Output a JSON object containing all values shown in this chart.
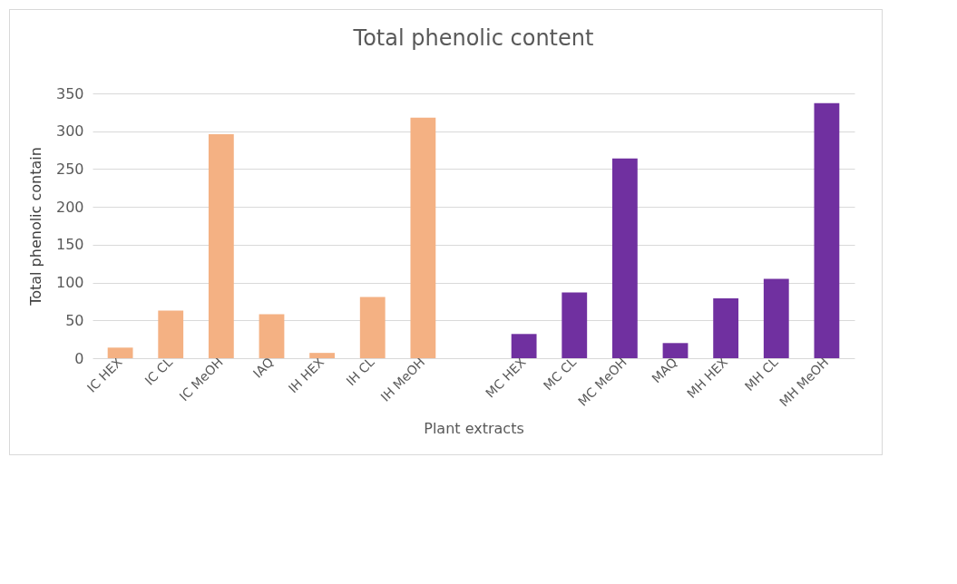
{
  "chart_data": {
    "type": "bar",
    "title": "Total phenolic content",
    "xlabel": "Plant extracts",
    "ylabel": "Total phenolic contain",
    "categories": [
      "IC HEX",
      "IC CL",
      "IC MeOH",
      "IAQ",
      "IH HEX",
      "IH CL",
      "IH MeOH",
      null,
      "MC HEX",
      "MC CL",
      "MC MeOH",
      "MAQ",
      "MH HEX",
      "MH CL",
      "MH MeOH"
    ],
    "values": [
      14,
      63,
      296,
      58,
      7,
      81,
      318,
      null,
      32,
      87,
      264,
      20,
      79,
      105,
      337
    ],
    "colors": [
      "#f4b183",
      "#f4b183",
      "#f4b183",
      "#f4b183",
      "#f4b183",
      "#f4b183",
      "#f4b183",
      "#f4b183",
      "#7030a0",
      "#7030a0",
      "#7030a0",
      "#7030a0",
      "#7030a0",
      "#7030a0",
      "#7030a0"
    ],
    "ylim": [
      0,
      350
    ],
    "yticks": [
      0,
      50,
      100,
      150,
      200,
      250,
      300,
      350
    ],
    "grid": "y"
  }
}
